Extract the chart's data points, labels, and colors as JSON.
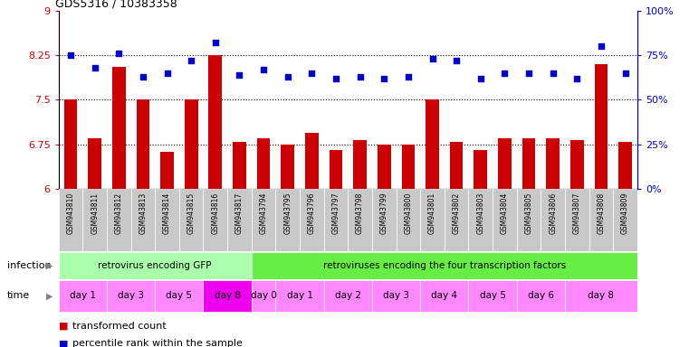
{
  "title": "GDS5316 / 10383358",
  "samples": [
    "GSM943810",
    "GSM943811",
    "GSM943812",
    "GSM943813",
    "GSM943814",
    "GSM943815",
    "GSM943816",
    "GSM943817",
    "GSM943794",
    "GSM943795",
    "GSM943796",
    "GSM943797",
    "GSM943798",
    "GSM943799",
    "GSM943800",
    "GSM943801",
    "GSM943802",
    "GSM943803",
    "GSM943804",
    "GSM943805",
    "GSM943806",
    "GSM943807",
    "GSM943808",
    "GSM943809"
  ],
  "bar_values": [
    7.5,
    6.85,
    8.05,
    7.5,
    6.62,
    7.5,
    8.25,
    6.8,
    6.85,
    6.75,
    6.95,
    6.65,
    6.82,
    6.75,
    6.75,
    7.5,
    6.8,
    6.65,
    6.85,
    6.85,
    6.85,
    6.82,
    8.1,
    6.8
  ],
  "dot_values": [
    75,
    68,
    76,
    63,
    65,
    72,
    82,
    64,
    67,
    63,
    65,
    62,
    63,
    62,
    63,
    73,
    72,
    62,
    65,
    65,
    65,
    62,
    80,
    65
  ],
  "bar_color": "#CC0000",
  "dot_color": "#0000CC",
  "ylim_left": [
    6,
    9
  ],
  "ylim_right": [
    0,
    100
  ],
  "yticks_left": [
    6,
    6.75,
    7.5,
    8.25,
    9
  ],
  "yticks_right": [
    0,
    25,
    50,
    75,
    100
  ],
  "ytick_labels_left": [
    "6",
    "6.75",
    "7.5",
    "8.25",
    "9"
  ],
  "ytick_labels_right": [
    "0%",
    "25%",
    "50%",
    "75%",
    "100%"
  ],
  "hlines": [
    6.75,
    7.5,
    8.25
  ],
  "infection_label": "infection",
  "time_label": "time",
  "group1_label": "retrovirus encoding GFP",
  "group2_label": "retroviruses encoding the four transcription factors",
  "group1_color": "#AAFFAA",
  "group2_color": "#66EE44",
  "time_ranges": [
    {
      "label": "day 1",
      "start": 0,
      "end": 2,
      "color": "#FF88FF"
    },
    {
      "label": "day 3",
      "start": 2,
      "end": 4,
      "color": "#FF88FF"
    },
    {
      "label": "day 5",
      "start": 4,
      "end": 6,
      "color": "#FF88FF"
    },
    {
      "label": "day 8",
      "start": 6,
      "end": 8,
      "color": "#EE00EE"
    },
    {
      "label": "day 0",
      "start": 8,
      "end": 9,
      "color": "#FF88FF"
    },
    {
      "label": "day 1",
      "start": 9,
      "end": 11,
      "color": "#FF88FF"
    },
    {
      "label": "day 2",
      "start": 11,
      "end": 13,
      "color": "#FF88FF"
    },
    {
      "label": "day 3",
      "start": 13,
      "end": 15,
      "color": "#FF88FF"
    },
    {
      "label": "day 4",
      "start": 15,
      "end": 17,
      "color": "#FF88FF"
    },
    {
      "label": "day 5",
      "start": 17,
      "end": 19,
      "color": "#FF88FF"
    },
    {
      "label": "day 6",
      "start": 19,
      "end": 21,
      "color": "#FF88FF"
    },
    {
      "label": "day 8",
      "start": 21,
      "end": 24,
      "color": "#FF88FF"
    }
  ],
  "legend_bar_label": "transformed count",
  "legend_dot_label": "percentile rank within the sample",
  "bg_color": "#FFFFFF",
  "tick_color_left": "#CC0000",
  "tick_color_right": "#0000CC",
  "xtick_bg_color": "#C8C8C8",
  "n_samples": 24
}
